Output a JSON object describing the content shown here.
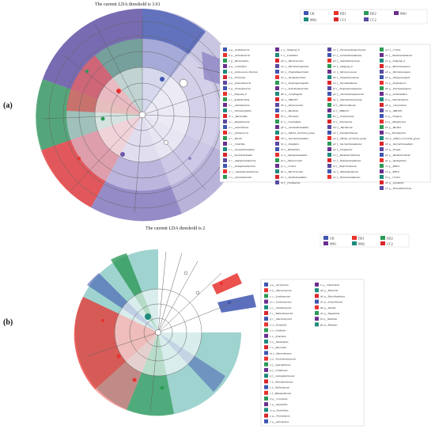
{
  "panel_a": {
    "label": "(a)",
    "title": "The current LDA threshold is 3.61",
    "groups": [
      {
        "name": "CK",
        "color": "#3f56b0"
      },
      {
        "name": "DZ1",
        "color": "#e8322e"
      },
      {
        "name": "DZ2",
        "color": "#2e9a57"
      },
      {
        "name": "MS1",
        "color": "#6a2f8e"
      },
      {
        "name": "MS2",
        "color": "#1f8b7c"
      },
      {
        "name": "CC1",
        "color": "#d9262b"
      },
      {
        "name": "CC2",
        "color": "#5a4aa0"
      }
    ],
    "legend_cols": [
      [
        "a: p__Acidobacteria",
        "b: p__Actinobacteria",
        "c: p__Bacteroidetes",
        "d: p__Chloroflexi",
        "e: p__Deinococcus-Thermus",
        "f: p__Firmicutes",
        "g: p__Patescibacteria",
        "h: p__Proteobacteria",
        "i: c__Subgroup_6",
        "j: c__Acidimicrobiia",
        "k: c__Actinobacteria",
        "l: c__Thermoleophilia",
        "m: c__Bacteroidia",
        "n: c__Rhodothermia",
        "o: c__Anaerolineae",
        "p: c__[Deinococci]",
        "q: c__Bacilli",
        "r: c__Clostridia",
        "s: c__Gemmatimonadetes",
        "t: c__Saccharimonadia",
        "u: c__Alphaproteobacteria",
        "v: c__Deltaproteobacteria",
        "w: c__Gammaproteobacteria",
        "x: o__Actinomarinales"
      ],
      [
        "y: o__Subgroup_6",
        "z: o__Frankiales",
        "a0: o__Micrococcales",
        "a1: o__Micromonosporales",
        "b0: o__Propionibacteriales",
        "b1: o__Streptomycetales",
        "c0: o__Streptosporangiales",
        "c1: o__Solirubrobacterales",
        "d0: o__Cytophagales",
        "d1: o__SBR1031",
        "e0: o__Deinococcales",
        "e1: o__Bacillales",
        "f0: o__Thermales",
        "f1: o__Clostridiales",
        "g0: o__Gemmatimonadales",
        "g1: o__SM1A1_terrestrial_group",
        "h0: o__Saccharimonadales",
        "h1: o__Dongiales",
        "i0: o__Rhizobiales",
        "i1: o__Sphingomonadales",
        "j0: o__Myxococcales",
        "j1: o__CCD24",
        "k0: o__Micrococcales",
        "k1: o__Xanthomonadales",
        "l0: f__Frankiaceae"
      ],
      [
        "y1: f__Thermoactinomycetaceae",
        "z1: f__Gemmatimonadaceae",
        "a2: f__Xanthobacteraceae",
        "b2: f__Subgroup_6",
        "c2: f__Micrococcaceae",
        "d2: f__Streptomycetaceae",
        "e2: f__Nocardioidaceae",
        "f2: f__Streptosporangiaceae",
        "g2: f__Thermomonosporaceae",
        "h2: f__Solirubrobacteraceae",
        "i2: f__Microscillaceae",
        "j2: f__SBR1031",
        "k2: f__Trueperaceae",
        "l2: f__Thermaceae",
        "m2: f__Bacillaceae",
        "n2: f__Paenibacillaceae",
        "o2: f__SM1A1_terrestrial_group",
        "p2: f__Saccharimonadaceae",
        "q2: f__Dongiaceae",
        "r2: f__Rhodomicrobiaceae",
        "s2: f__Sphingomonadaceae",
        "t2: f__Beijerinckiaceae",
        "u2: f__Methylophilaceae",
        "v2: f__Nitrosomonadaceae"
      ],
      [
        "w2: f__CCD24",
        "x2: f__Xanthomonadaceae",
        "y2: g__Subgroup_6",
        "z2: g__Micromonospora",
        "a3: g__Micromonospora",
        "b3: g__Virgisporangium",
        "c3: g__Streptomyces",
        "d3: g__Thermopolyspora",
        "e3: g__Actinomadura",
        "f3: g__Solirubrobacter",
        "g3: g__Chryseolinea",
        "h3: g__SBR1031",
        "i3: g__Truepera",
        "j3: g__Meiothermus",
        "k3: g__Bacillus",
        "l3: g__Brevibacillus",
        "m3: g__SM1A1_terrestrial_group",
        "n3: g__Saccharimonadales",
        "o3: g__Dongia",
        "p3: g__Rhodomicrobium",
        "q3: g__Sphingobium",
        "r3: g__MND1",
        "s3: g__MND1",
        "t3: g__CCD24",
        "u3: g__Lysobacter",
        "v3: g__Vulcaniibacterium"
      ]
    ]
  },
  "panel_b": {
    "label": "(b)",
    "title": "The current LDA threshold is 2",
    "groups": [
      {
        "name": "CK",
        "color": "#3f56b0"
      },
      {
        "name": "DZ1",
        "color": "#e8322e"
      },
      {
        "name": "DZ2",
        "color": "#2e9a57"
      },
      {
        "name": "MS1",
        "color": "#6a2f8e"
      },
      {
        "name": "MS2",
        "color": "#1f8b7c"
      },
      {
        "name": "CC2",
        "color": "#d9262b"
      }
    ],
    "legend_cols": [
      [
        "a: p__Ascomycota",
        "b: p__Mucoromycota",
        "c: c__Leotiomycetes",
        "d: c__Eurotiomycetes",
        "e: c__Orbiliomycetes",
        "f: c__Wallemiomycetes",
        "g: c__Mucoromycetes",
        "h: o__Eurotiales",
        "i: o__Orbiliales",
        "j: o__Xylariales",
        "k: o__Wallemiales",
        "l: o__Mucorales",
        "m: f__Sporormiaceae",
        "n: f__Trichomonascaceae",
        "o: f__Aspergillaceae",
        "p: f__Orbiliaceae",
        "q: f__Lasiosphaeriaceae",
        "r: f__Microdochiaceae",
        "s: f__Wallemiaceae",
        "t: f__Rhizopodiaceae",
        "u: g__Curvularia",
        "v: g__Aspergillus",
        "w: g__Penicillium",
        "x: g__Thermomyces",
        "y: g__Arthrobotrys"
      ],
      [
        "z: g__Chaetomium",
        "a0: g__Humicola",
        "b0: g__Mycelliophthora",
        "c0: g__Schizothecium",
        "d0: g__Idriella",
        "e0: g__Naganishia",
        "f0: g__Wallemia",
        "g0: g__Rhizopus"
      ]
    ]
  }
}
